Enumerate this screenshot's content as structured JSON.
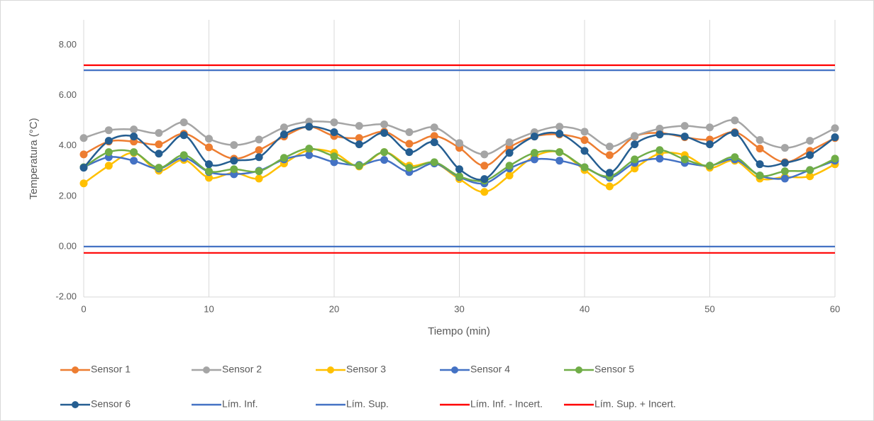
{
  "chart_data": {
    "type": "line",
    "x_label": "Tiempo (min)",
    "y_label": "Temperatura (°C)",
    "x": [
      0,
      2,
      4,
      6,
      8,
      10,
      12,
      14,
      16,
      18,
      20,
      22,
      24,
      26,
      28,
      30,
      32,
      34,
      36,
      38,
      40,
      42,
      44,
      46,
      48,
      50,
      52,
      54,
      56,
      58,
      60
    ],
    "xlim": [
      0,
      60
    ],
    "xticks": [
      0,
      10,
      20,
      30,
      40,
      50,
      60
    ],
    "ylim": [
      -2,
      9
    ],
    "yticks": [
      {
        "value": -2,
        "label": "-2.00"
      },
      {
        "value": 0,
        "label": "0.00"
      },
      {
        "value": 2,
        "label": "2.00"
      },
      {
        "value": 4,
        "label": "4.00"
      },
      {
        "value": 6,
        "label": "6.00"
      },
      {
        "value": 8,
        "label": "8.00"
      }
    ],
    "grid": "x",
    "smooth": true,
    "legend": "bottom",
    "series": [
      {
        "name": "Sensor 1",
        "color": "#ed7d31",
        "marker": true,
        "values": [
          3.66,
          4.17,
          4.17,
          4.06,
          4.48,
          3.94,
          3.49,
          3.83,
          4.37,
          4.76,
          4.39,
          4.31,
          4.56,
          4.08,
          4.39,
          3.92,
          3.21,
          3.94,
          4.37,
          4.45,
          4.23,
          3.63,
          4.37,
          4.51,
          4.34,
          4.25,
          4.54,
          3.89,
          3.35,
          3.8,
          4.31
        ]
      },
      {
        "name": "Sensor 2",
        "color": "#a5a5a5",
        "marker": true,
        "values": [
          4.31,
          4.62,
          4.65,
          4.51,
          4.93,
          4.28,
          4.03,
          4.25,
          4.73,
          4.96,
          4.93,
          4.79,
          4.85,
          4.54,
          4.73,
          4.11,
          3.66,
          4.14,
          4.54,
          4.76,
          4.56,
          3.97,
          4.39,
          4.68,
          4.79,
          4.73,
          5.01,
          4.23,
          3.92,
          4.2,
          4.7
        ]
      },
      {
        "name": "Sensor 3",
        "color": "#ffc000",
        "marker": true,
        "values": [
          2.51,
          3.21,
          3.72,
          3.01,
          3.44,
          2.73,
          2.93,
          2.7,
          3.3,
          3.83,
          3.72,
          3.18,
          3.75,
          3.21,
          3.32,
          2.68,
          2.17,
          2.82,
          3.58,
          3.75,
          3.04,
          2.39,
          3.1,
          3.69,
          3.63,
          3.13,
          3.41,
          2.7,
          2.76,
          2.79,
          3.27
        ]
      },
      {
        "name": "Sensor 4",
        "color": "#4472c4",
        "marker": true,
        "values": [
          3.15,
          3.55,
          3.41,
          3.1,
          3.52,
          2.96,
          2.87,
          3.01,
          3.46,
          3.63,
          3.35,
          3.24,
          3.44,
          2.96,
          3.3,
          2.76,
          2.51,
          3.1,
          3.46,
          3.41,
          3.15,
          2.73,
          3.32,
          3.49,
          3.32,
          3.21,
          3.46,
          2.82,
          2.7,
          3.04,
          3.41
        ]
      },
      {
        "name": "Sensor 5",
        "color": "#70ad47",
        "marker": true,
        "values": [
          3.15,
          3.75,
          3.75,
          3.13,
          3.63,
          2.99,
          3.07,
          2.99,
          3.52,
          3.89,
          3.58,
          3.21,
          3.75,
          3.13,
          3.35,
          2.79,
          2.62,
          3.21,
          3.72,
          3.75,
          3.15,
          2.79,
          3.46,
          3.83,
          3.46,
          3.21,
          3.55,
          2.82,
          2.99,
          3.04,
          3.49
        ]
      },
      {
        "name": "Sensor 6",
        "color": "#255e91",
        "marker": true,
        "values": [
          3.13,
          4.2,
          4.37,
          3.69,
          4.42,
          3.27,
          3.41,
          3.55,
          4.45,
          4.76,
          4.54,
          4.06,
          4.51,
          3.75,
          4.14,
          3.07,
          2.68,
          3.72,
          4.37,
          4.48,
          3.8,
          2.93,
          4.06,
          4.45,
          4.37,
          4.06,
          4.51,
          3.27,
          3.32,
          3.63,
          4.34
        ]
      },
      {
        "name": "Lím. Inf.",
        "color": "#4472c4",
        "marker": false,
        "x": [
          0,
          60
        ],
        "values": [
          0,
          0
        ]
      },
      {
        "name": "Lím. Sup.",
        "color": "#4472c4",
        "marker": false,
        "x": [
          0,
          60
        ],
        "values": [
          7,
          7
        ]
      },
      {
        "name": "Lím. Inf. - Incert.",
        "color": "#ff0000",
        "marker": false,
        "x": [
          0,
          60
        ],
        "values": [
          -0.25,
          -0.25
        ]
      },
      {
        "name": "Lím. Sup. + Incert.",
        "color": "#ff0000",
        "marker": false,
        "x": [
          0,
          60
        ],
        "values": [
          7.2,
          7.2
        ]
      }
    ]
  }
}
